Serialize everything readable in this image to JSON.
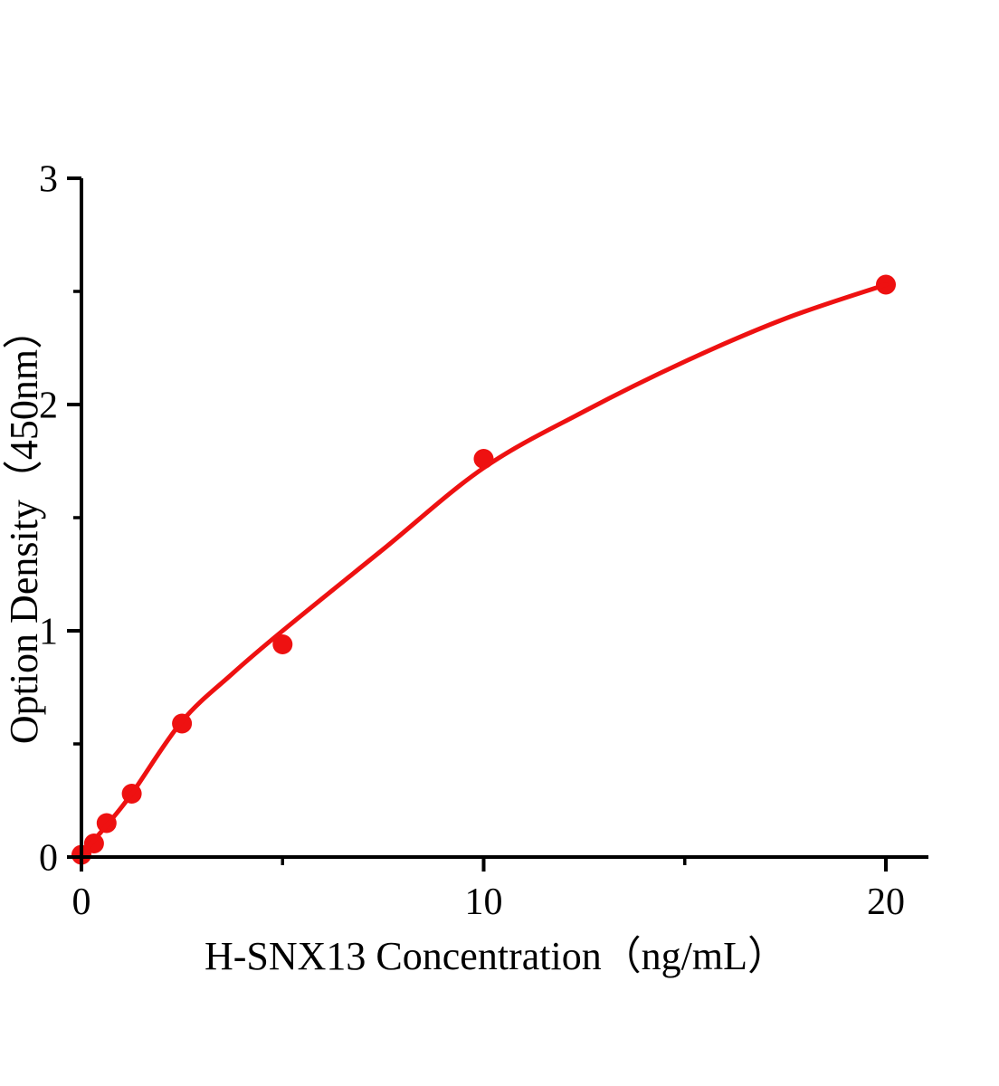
{
  "figure": {
    "background": "#ffffff",
    "x_axis_title": "H-SNX13 Concentration（ng/mL）",
    "y_axis_title": "Option Density（450nm）"
  },
  "chart_data": {
    "type": "scatter",
    "title": "",
    "xlabel": "H-SNX13 Concentration（ng/mL）",
    "ylabel": "Option Density（450nm）",
    "xlim": [
      0,
      21.05
    ],
    "ylim": [
      0,
      3
    ],
    "x_major_ticks": [
      0,
      10,
      20
    ],
    "x_minor_ticks": [
      5,
      15
    ],
    "y_major_ticks": [
      0,
      1,
      2,
      3
    ],
    "y_minor_ticks": [
      0.5,
      1.5,
      2.5
    ],
    "grid": false,
    "legend_position": "none",
    "colors": {
      "accent": "#ee1111",
      "axis": "#000000"
    },
    "series": [
      {
        "name": "standard-points",
        "type": "scatter",
        "color": "#ee1111",
        "marker_radius": 11,
        "points": [
          [
            0,
            0.01
          ],
          [
            0.3125,
            0.06
          ],
          [
            0.625,
            0.15
          ],
          [
            1.25,
            0.28
          ],
          [
            2.5,
            0.59
          ],
          [
            5,
            0.94
          ],
          [
            10,
            1.76
          ],
          [
            20,
            2.53
          ]
        ]
      },
      {
        "name": "fit-curve",
        "type": "line",
        "color": "#ee1111",
        "line_width": 5,
        "points": [
          [
            0,
            0.01
          ],
          [
            0.625,
            0.14
          ],
          [
            1.25,
            0.28
          ],
          [
            2.5,
            0.6
          ],
          [
            3.75,
            0.81
          ],
          [
            5,
            1.0
          ],
          [
            7.5,
            1.36
          ],
          [
            10,
            1.72
          ],
          [
            12.5,
            1.97
          ],
          [
            15,
            2.19
          ],
          [
            17.5,
            2.38
          ],
          [
            20,
            2.53
          ]
        ]
      }
    ]
  }
}
